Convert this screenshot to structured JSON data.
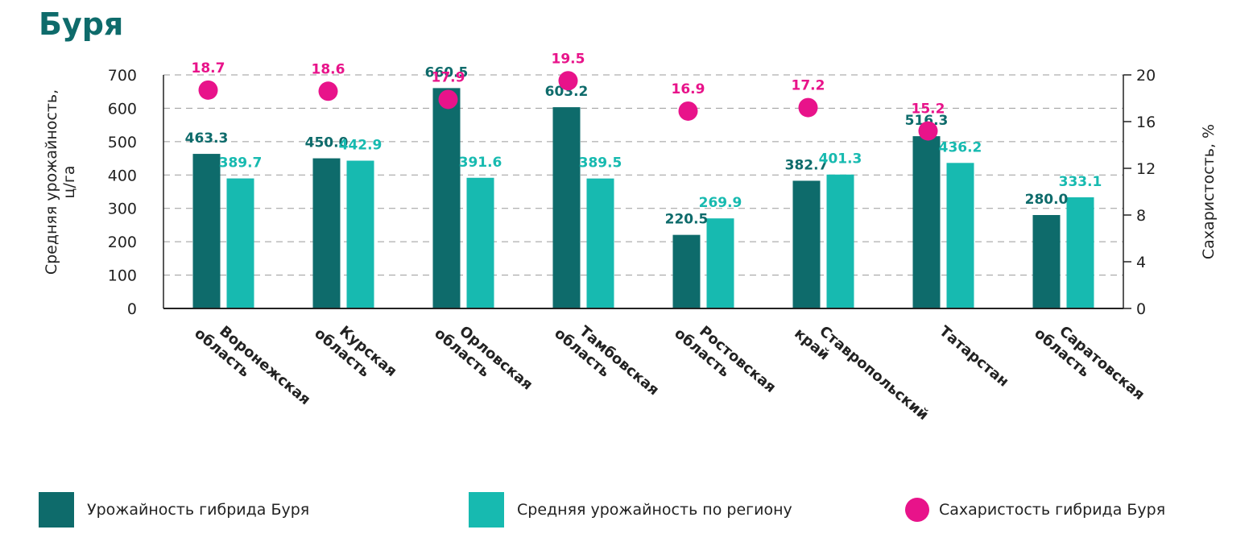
{
  "title": "Буря",
  "colors": {
    "hybrid": "#0e6b6b",
    "region": "#17bab0",
    "sugar": "#e8138a",
    "axis": "#222222",
    "grid": "#9a9a9a"
  },
  "chart_data": {
    "type": "bar",
    "title": "Буря",
    "categories": [
      [
        "Воронежская",
        "область"
      ],
      [
        "Курская",
        "область"
      ],
      [
        "Орловская",
        "область"
      ],
      [
        "Тамбовская",
        "область"
      ],
      [
        "Ростовская",
        "область"
      ],
      [
        "Ставропольский",
        "край"
      ],
      [
        "Татарстан"
      ],
      [
        "Саратовская",
        "область"
      ]
    ],
    "ylabel": [
      "Средняя урожайность,",
      "ц/га"
    ],
    "ylim": [
      0,
      700
    ],
    "yticks": [
      "0",
      "100",
      "200",
      "300",
      "400",
      "500",
      "600",
      "700"
    ],
    "y2label": "Сахаристость, %",
    "y2lim": [
      0,
      20
    ],
    "y2ticks": [
      "0",
      "4",
      "8",
      "12",
      "16",
      "20"
    ],
    "grid": true,
    "legend_position": "bottom",
    "series": [
      {
        "name": "Урожайность гибрида Буря",
        "type": "bar",
        "axis": "left",
        "values": [
          463.3,
          450.0,
          660.5,
          603.2,
          220.5,
          382.7,
          516.3,
          280.0
        ],
        "labels": [
          "463.3",
          "450.0",
          "660.5",
          "603.2",
          "220.5",
          "382.7",
          "516.3",
          "280.0"
        ]
      },
      {
        "name": "Средняя урожайность по региону",
        "type": "bar",
        "axis": "left",
        "values": [
          389.7,
          442.9,
          391.6,
          389.5,
          269.9,
          401.3,
          436.2,
          333.1
        ],
        "labels": [
          "389.7",
          "442.9",
          "391.6",
          "389.5",
          "269.9",
          "401.3",
          "436.2",
          "333.1"
        ]
      },
      {
        "name": "Сахаристость гибрида Буря",
        "type": "scatter",
        "axis": "right",
        "values": [
          18.7,
          18.6,
          17.9,
          19.5,
          16.9,
          17.2,
          15.2,
          null
        ],
        "labels": [
          "18.7",
          "18.6",
          "17.9",
          "19.5",
          "16.9",
          "17.2",
          "15.2",
          ""
        ]
      }
    ]
  }
}
